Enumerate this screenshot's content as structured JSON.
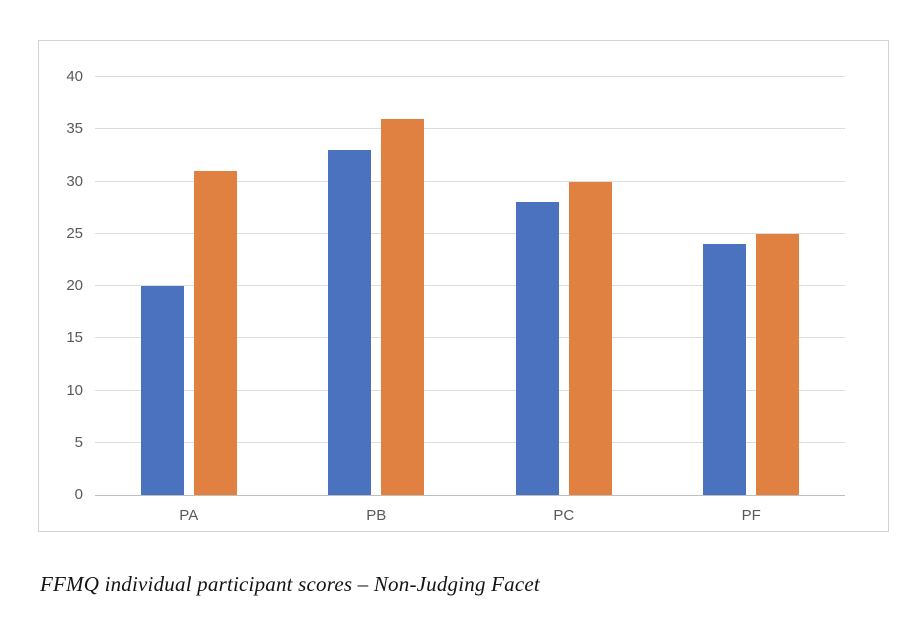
{
  "caption": "FFMQ individual participant scores – Non-Judging Facet",
  "chart_data": {
    "type": "bar",
    "title": "",
    "xlabel": "",
    "ylabel": "",
    "categories": [
      "PA",
      "PB",
      "PC",
      "PF"
    ],
    "series": [
      {
        "color": "#4A72BE",
        "values": [
          20,
          33,
          28,
          24
        ]
      },
      {
        "color": "#E08142",
        "values": [
          31,
          36,
          30,
          25
        ]
      }
    ],
    "ylim": [
      0,
      40
    ],
    "yticks": [
      0,
      5,
      10,
      15,
      20,
      25,
      30,
      35,
      40
    ],
    "grid": true,
    "legend_position": "none",
    "colors": {
      "gridline": "#dcdcdc",
      "axis_line": "#bfbfbf",
      "tick_label": "#595959",
      "plot_border": "#d2d2d2"
    }
  }
}
